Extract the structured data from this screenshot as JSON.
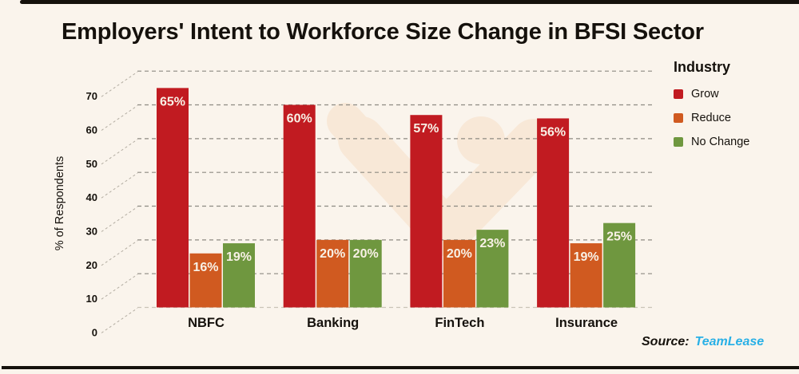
{
  "page": {
    "background": "#faf4ec",
    "border_color": "#15110c"
  },
  "title": "Employers' Intent to Workforce Size Change in BFSI Sector",
  "legend": {
    "title": "Industry",
    "items": [
      {
        "label": "Grow",
        "color": "#c11b21"
      },
      {
        "label": "Reduce",
        "color": "#d05a20"
      },
      {
        "label": "No Change",
        "color": "#6f973f"
      }
    ]
  },
  "source": {
    "prefix": "Source:",
    "name": "TeamLease",
    "name_color": "#29b0e6"
  },
  "chart_data": {
    "type": "bar",
    "title": "Employers' Intent to Workforce Size Change in BFSI Sector",
    "categories": [
      "NBFC",
      "Banking",
      "FinTech",
      "Insurance"
    ],
    "series": [
      {
        "name": "Grow",
        "color": "#c11b21",
        "values": [
          65,
          60,
          57,
          56
        ]
      },
      {
        "name": "Reduce",
        "color": "#d05a20",
        "values": [
          16,
          20,
          20,
          19
        ]
      },
      {
        "name": "No Change",
        "color": "#6f973f",
        "values": [
          19,
          20,
          23,
          25
        ]
      }
    ],
    "value_suffix": "%",
    "xlabel": "",
    "ylabel": "% of Respondents",
    "yticks": [
      0,
      10,
      20,
      30,
      40,
      50,
      60,
      70
    ],
    "ylim": [
      0,
      70
    ],
    "grid": true,
    "grid_style": "dashed horizontal with offset 3D-style axis ticks",
    "legend_title": "Industry",
    "legend_position": "right",
    "value_label_color": "#f8f1e6",
    "watermark": "TeamLease logo (faint peach)"
  }
}
